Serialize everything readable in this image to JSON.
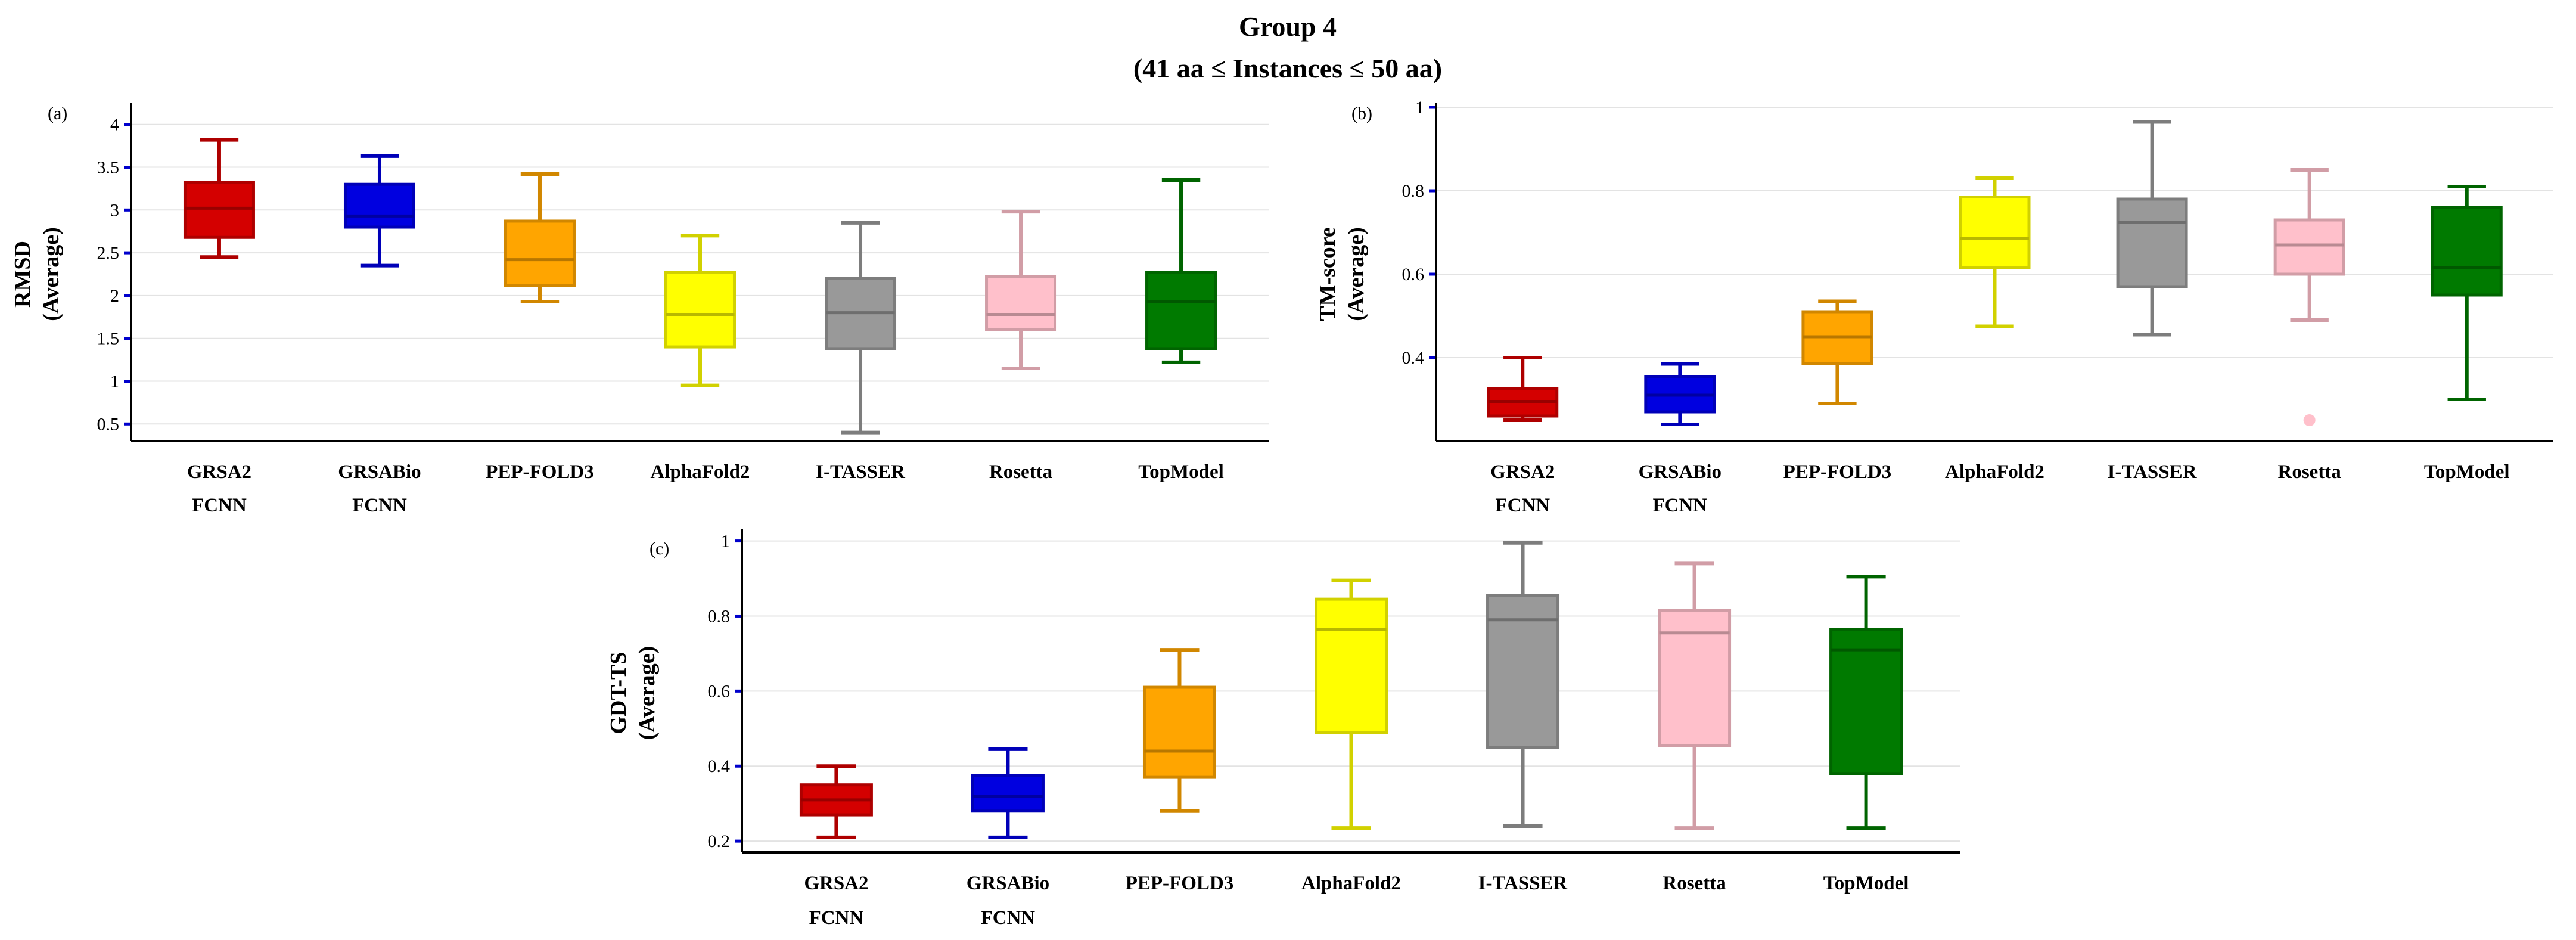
{
  "title_line1": "Group 4",
  "title_line2": "(41 aa ≤ Instances ≤ 50 aa)",
  "chart_data": [
    {
      "type": "box",
      "panel_label": "(a)",
      "ylabel_line1": "RMSD",
      "ylabel_line2": "(Average)",
      "ylim": [
        0.3,
        4.2
      ],
      "yticks": [
        0.5,
        1,
        1.5,
        2,
        2.5,
        3,
        3.5,
        4
      ],
      "ytick_labels": [
        "0.5",
        "1",
        "1.5",
        "2",
        "2.5",
        "3",
        "3.5",
        "4"
      ],
      "categories": [
        {
          "line1": "GRSA2",
          "line2": "FCNN",
          "color": "#d40000",
          "min": 2.45,
          "q1": 2.68,
          "median": 3.02,
          "q3": 3.32,
          "max": 3.82,
          "outliers": []
        },
        {
          "line1": "GRSABio",
          "line2": "FCNN",
          "color": "#0000e0",
          "min": 2.35,
          "q1": 2.8,
          "median": 2.93,
          "q3": 3.3,
          "max": 3.63,
          "outliers": []
        },
        {
          "line1": "PEP-FOLD3",
          "line2": "",
          "color": "#ffa500",
          "min": 1.93,
          "q1": 2.12,
          "median": 2.42,
          "q3": 2.87,
          "max": 3.42,
          "outliers": []
        },
        {
          "line1": "AlphaFold2",
          "line2": "",
          "color": "#ffff00",
          "min": 0.95,
          "q1": 1.4,
          "median": 1.78,
          "q3": 2.27,
          "max": 2.7,
          "outliers": []
        },
        {
          "line1": "I-TASSER",
          "line2": "",
          "color": "#999999",
          "min": 0.4,
          "q1": 1.38,
          "median": 1.8,
          "q3": 2.2,
          "max": 2.85,
          "outliers": []
        },
        {
          "line1": "Rosetta",
          "line2": "",
          "color": "#ffc0cb",
          "min": 1.15,
          "q1": 1.6,
          "median": 1.78,
          "q3": 2.22,
          "max": 2.98,
          "outliers": []
        },
        {
          "line1": "TopModel",
          "line2": "",
          "color": "#007a00",
          "min": 1.22,
          "q1": 1.38,
          "median": 1.93,
          "q3": 2.27,
          "max": 3.35,
          "outliers": []
        }
      ]
    },
    {
      "type": "box",
      "panel_label": "(b)",
      "ylabel_line1": "TM-score",
      "ylabel_line2": "(Average)",
      "ylim": [
        0.2,
        1.0
      ],
      "yticks": [
        0.4,
        0.6,
        0.8,
        1
      ],
      "ytick_labels": [
        "0.4",
        "0.6",
        "0.8",
        "1"
      ],
      "categories": [
        {
          "line1": "GRSA2",
          "line2": "FCNN",
          "color": "#d40000",
          "min": 0.25,
          "q1": 0.26,
          "median": 0.295,
          "q3": 0.325,
          "max": 0.4,
          "outliers": []
        },
        {
          "line1": "GRSABio",
          "line2": "FCNN",
          "color": "#0000e0",
          "min": 0.24,
          "q1": 0.27,
          "median": 0.31,
          "q3": 0.355,
          "max": 0.385,
          "outliers": []
        },
        {
          "line1": "PEP-FOLD3",
          "line2": "",
          "color": "#ffa500",
          "min": 0.29,
          "q1": 0.385,
          "median": 0.45,
          "q3": 0.51,
          "max": 0.535,
          "outliers": []
        },
        {
          "line1": "AlphaFold2",
          "line2": "",
          "color": "#ffff00",
          "min": 0.475,
          "q1": 0.615,
          "median": 0.685,
          "q3": 0.785,
          "max": 0.83,
          "outliers": []
        },
        {
          "line1": "I-TASSER",
          "line2": "",
          "color": "#999999",
          "min": 0.455,
          "q1": 0.57,
          "median": 0.725,
          "q3": 0.78,
          "max": 0.965,
          "outliers": []
        },
        {
          "line1": "Rosetta",
          "line2": "",
          "color": "#ffc0cb",
          "min": 0.49,
          "q1": 0.6,
          "median": 0.67,
          "q3": 0.73,
          "max": 0.85,
          "outliers": [
            0.25
          ]
        },
        {
          "line1": "TopModel",
          "line2": "",
          "color": "#007a00",
          "min": 0.3,
          "q1": 0.55,
          "median": 0.615,
          "q3": 0.76,
          "max": 0.81,
          "outliers": []
        }
      ]
    },
    {
      "type": "box",
      "panel_label": "(c)",
      "ylabel_line1": "GDT-TS",
      "ylabel_line2": "(Average)",
      "ylim": [
        0.17,
        1.02
      ],
      "yticks": [
        0.2,
        0.4,
        0.6,
        0.8,
        1
      ],
      "ytick_labels": [
        "0.2",
        "0.4",
        "0.6",
        "0.8",
        "1"
      ],
      "categories": [
        {
          "line1": "GRSA2",
          "line2": "FCNN",
          "color": "#d40000",
          "min": 0.21,
          "q1": 0.27,
          "median": 0.31,
          "q3": 0.35,
          "max": 0.4,
          "outliers": []
        },
        {
          "line1": "GRSABio",
          "line2": "FCNN",
          "color": "#0000e0",
          "min": 0.21,
          "q1": 0.28,
          "median": 0.32,
          "q3": 0.375,
          "max": 0.445,
          "outliers": []
        },
        {
          "line1": "PEP-FOLD3",
          "line2": "",
          "color": "#ffa500",
          "min": 0.28,
          "q1": 0.37,
          "median": 0.44,
          "q3": 0.61,
          "max": 0.71,
          "outliers": []
        },
        {
          "line1": "AlphaFold2",
          "line2": "",
          "color": "#ffff00",
          "min": 0.235,
          "q1": 0.49,
          "median": 0.765,
          "q3": 0.845,
          "max": 0.895,
          "outliers": []
        },
        {
          "line1": "I-TASSER",
          "line2": "",
          "color": "#999999",
          "min": 0.24,
          "q1": 0.45,
          "median": 0.79,
          "q3": 0.855,
          "max": 0.995,
          "outliers": []
        },
        {
          "line1": "Rosetta",
          "line2": "",
          "color": "#ffc0cb",
          "min": 0.235,
          "q1": 0.455,
          "median": 0.755,
          "q3": 0.815,
          "max": 0.94,
          "outliers": []
        },
        {
          "line1": "TopModel",
          "line2": "",
          "color": "#007a00",
          "min": 0.235,
          "q1": 0.38,
          "median": 0.71,
          "q3": 0.765,
          "max": 0.905,
          "outliers": []
        }
      ]
    }
  ]
}
